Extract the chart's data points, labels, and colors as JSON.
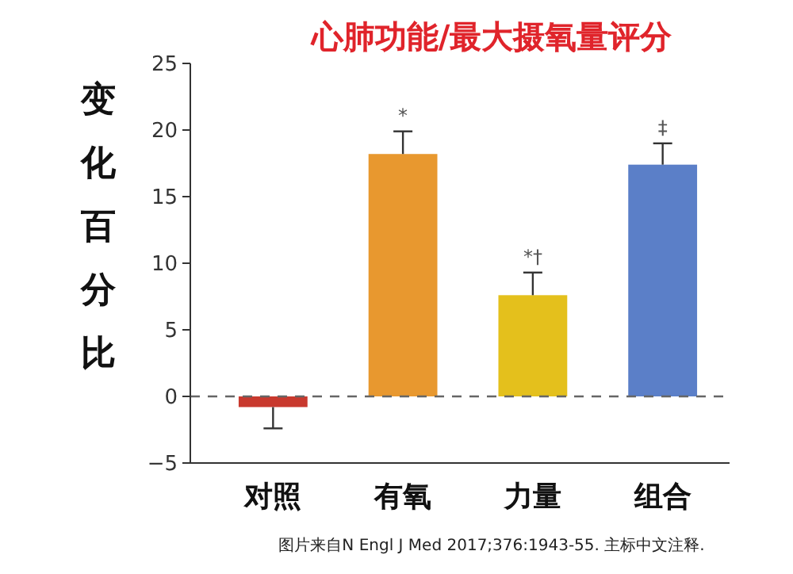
{
  "chart_data": {
    "type": "bar",
    "title": "心肺功能/最大摄氧量评分",
    "ylabel": "变化百分比",
    "categories": [
      "对照",
      "有氧",
      "力量",
      "组合"
    ],
    "values": [
      -0.8,
      18.2,
      7.6,
      17.4
    ],
    "colors": [
      "#c8392e",
      "#e8982f",
      "#e4c01c",
      "#5b7fc8"
    ],
    "errors": [
      [
        -2.4,
        -0.8
      ],
      [
        18.2,
        19.9
      ],
      [
        7.6,
        9.3
      ],
      [
        17.4,
        19.0
      ]
    ],
    "ylim": [
      -5,
      25
    ],
    "yticks": [
      -5,
      0,
      5,
      10,
      15,
      20,
      25
    ],
    "ref_lines": [
      {
        "axis": "y",
        "value": 0,
        "line_style": "dashed",
        "color": "#666666"
      }
    ],
    "annotations": [
      {
        "text": "*",
        "x": "有氧",
        "y": 19.9
      },
      {
        "text": "*†",
        "x": "力量",
        "y": 9.3
      },
      {
        "text": "‡",
        "x": "组合",
        "y": 19.0
      },
      "图片来自N Engl J Med 2017;376:1943-55. 主标中文注释."
    ],
    "grid": false
  }
}
